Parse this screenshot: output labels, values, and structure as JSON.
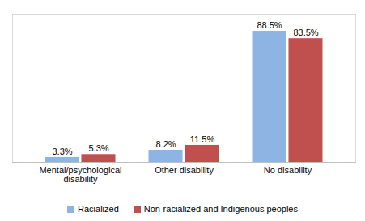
{
  "chart_data": {
    "type": "bar",
    "categories": [
      "Mental/psychological disability",
      "Other disability",
      "No disability"
    ],
    "series": [
      {
        "name": "Racialized",
        "color": "#8eb4e3",
        "values": [
          3.3,
          8.2,
          88.5
        ],
        "value_labels": [
          "3.3%",
          "8.2%",
          "88.5%"
        ]
      },
      {
        "name": "Non-racialized and Indigenous peoples",
        "color": "#c0504d",
        "values": [
          5.3,
          11.5,
          83.5
        ],
        "value_labels": [
          "5.3%",
          "11.5%",
          "83.5%"
        ]
      }
    ],
    "ylim": [
      0,
      100
    ],
    "data_labels": true,
    "tick_labels": "x",
    "legend": "bottom"
  }
}
